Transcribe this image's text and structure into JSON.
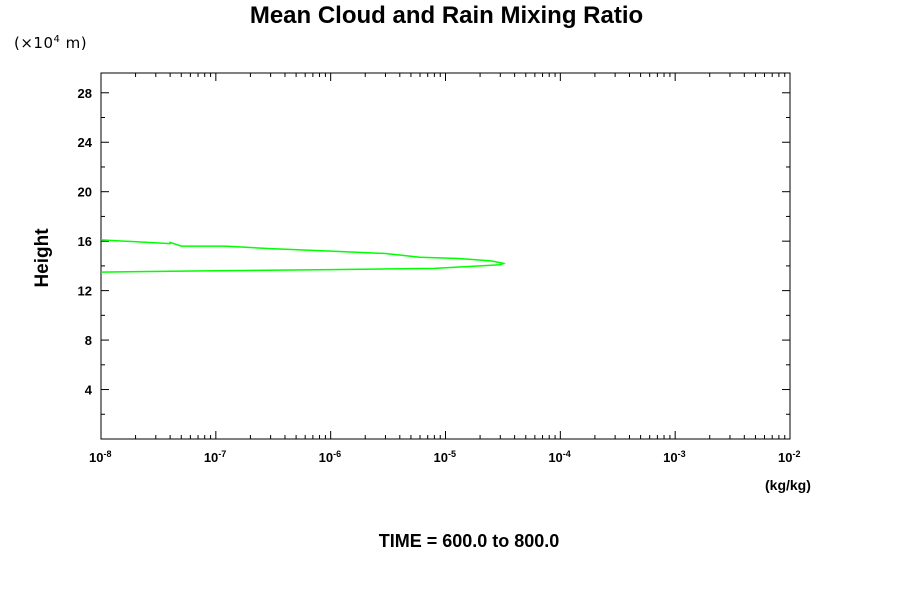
{
  "chart_data": {
    "type": "line",
    "title": "Mean Cloud and Rain Mixing Ratio",
    "ylabel": "Height",
    "yunit_prefix": "(×10",
    "yunit_exp": "4",
    "yunit_suffix": " m)",
    "xunit": "(kg/kg)",
    "footer": "TIME = 600.0 to 800.0",
    "xscale": "log",
    "xlim": [
      1e-08,
      0.01
    ],
    "ylim": [
      0,
      29.6
    ],
    "x_ticks": [
      {
        "base": "10",
        "exp": "-8"
      },
      {
        "base": "10",
        "exp": "-7"
      },
      {
        "base": "10",
        "exp": "-6"
      },
      {
        "base": "10",
        "exp": "-5"
      },
      {
        "base": "10",
        "exp": "-4"
      },
      {
        "base": "10",
        "exp": "-3"
      },
      {
        "base": "10",
        "exp": "-2"
      }
    ],
    "y_ticks": [
      4,
      8,
      12,
      16,
      20,
      24,
      28
    ],
    "line_color": "#00ff00",
    "series": [
      {
        "x": [
          1e-08,
          4e-08,
          4e-08,
          5e-08,
          1.2e-07,
          3e-07,
          1e-06,
          3e-06,
          6e-06,
          1.3e-05,
          2.5e-05,
          3.2e-05,
          3e-05,
          2e-05,
          8e-06,
          1e-06,
          1e-07,
          1e-08
        ],
        "y": [
          16.1,
          15.8,
          15.9,
          15.6,
          15.6,
          15.4,
          15.2,
          15.0,
          14.7,
          14.6,
          14.4,
          14.2,
          14.1,
          14.0,
          13.8,
          13.7,
          13.6,
          13.5
        ]
      }
    ]
  }
}
